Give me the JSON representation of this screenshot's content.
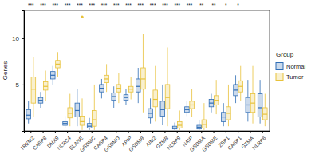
{
  "chart_data": {
    "type": "box",
    "y_label": "Genes",
    "legend_title": "Group",
    "legend": "right",
    "categories": [
      "TREM2",
      "CASP8",
      "DHX9",
      "NLRC4",
      "ELANE",
      "GSDMC",
      "CASP4",
      "GSDMD",
      "APIP",
      "GSDMB",
      "AIM2",
      "GZMB",
      "NLRP9",
      "NAIP",
      "GSDMA",
      "GSDME",
      "ZBP1",
      "CASP1",
      "GZMA",
      "NLRP6"
    ],
    "significance": [
      "***",
      "***",
      "***",
      "***",
      "***",
      "***",
      "***",
      "***",
      "***",
      "***",
      "***",
      "***",
      "***",
      "***",
      "**",
      "**",
      "*",
      "*",
      "-",
      "-"
    ],
    "ylim": [
      0,
      13
    ],
    "yticks": [
      5,
      10
    ],
    "series": [
      {
        "name": "Normal",
        "color": "#2f6db5",
        "boxes": [
          [
            0.8,
            1.3,
            1.7,
            2.3,
            3.2
          ],
          [
            2.5,
            3.0,
            3.3,
            3.6,
            4.2
          ],
          [
            5.0,
            5.6,
            6.0,
            6.4,
            7.0
          ],
          [
            0.3,
            0.6,
            0.8,
            1.0,
            1.6
          ],
          [
            0.5,
            1.5,
            2.2,
            3.0,
            4.5
          ],
          [
            0.1,
            0.3,
            0.5,
            0.8,
            1.4
          ],
          [
            3.5,
            4.2,
            4.6,
            5.0,
            5.6
          ],
          [
            2.5,
            3.3,
            3.7,
            4.1,
            4.8
          ],
          [
            2.8,
            3.3,
            3.6,
            3.9,
            4.5
          ],
          [
            3.0,
            4.2,
            4.8,
            5.6,
            6.8
          ],
          [
            0.8,
            1.4,
            1.9,
            2.4,
            3.5
          ],
          [
            0.6,
            1.6,
            2.3,
            3.2,
            5.0
          ],
          [
            0.1,
            0.2,
            0.3,
            0.5,
            0.9
          ],
          [
            1.6,
            2.0,
            2.3,
            2.6,
            3.2
          ],
          [
            0.1,
            0.2,
            0.4,
            0.6,
            1.2
          ],
          [
            2.0,
            2.6,
            3.0,
            3.4,
            4.0
          ],
          [
            0.5,
            1.0,
            1.5,
            2.0,
            3.0
          ],
          [
            3.0,
            3.8,
            4.4,
            5.0,
            6.0
          ],
          [
            1.0,
            2.0,
            2.8,
            3.6,
            5.5
          ],
          [
            0.8,
            1.5,
            2.5,
            4.0,
            5.5
          ]
        ],
        "outliers": [
          [],
          [],
          [],
          [],
          [],
          [],
          [],
          [],
          [],
          [],
          [],
          [],
          [],
          [],
          [],
          [],
          [],
          [],
          [],
          []
        ]
      },
      {
        "name": "Tumor",
        "color": "#e8c23a",
        "boxes": [
          [
            1.5,
            3.0,
            4.5,
            5.8,
            8.0
          ],
          [
            3.2,
            4.4,
            4.8,
            5.3,
            6.5
          ],
          [
            5.8,
            6.8,
            7.2,
            7.6,
            8.5
          ],
          [
            0.5,
            1.4,
            1.9,
            2.5,
            4.0
          ],
          [
            0.1,
            0.6,
            1.0,
            1.6,
            3.5
          ],
          [
            0.1,
            0.5,
            1.2,
            2.2,
            5.0
          ],
          [
            4.2,
            5.2,
            5.6,
            6.0,
            7.2
          ],
          [
            3.0,
            4.2,
            4.6,
            5.0,
            6.2
          ],
          [
            3.4,
            4.2,
            4.5,
            4.8,
            5.8
          ],
          [
            2.0,
            4.5,
            5.6,
            6.8,
            10.5
          ],
          [
            1.0,
            2.6,
            3.4,
            4.4,
            7.0
          ],
          [
            0.5,
            2.4,
            3.6,
            5.0,
            9.0
          ],
          [
            0.1,
            0.3,
            0.6,
            1.0,
            2.2
          ],
          [
            1.5,
            2.4,
            2.8,
            3.2,
            4.5
          ],
          [
            0.1,
            0.3,
            0.7,
            1.2,
            3.0
          ],
          [
            1.8,
            2.8,
            3.3,
            3.8,
            5.5
          ],
          [
            0.5,
            1.2,
            1.9,
            2.6,
            5.0
          ],
          [
            3.2,
            4.2,
            4.8,
            5.4,
            7.0
          ],
          [
            0.8,
            2.0,
            3.0,
            4.0,
            7.0
          ],
          [
            0.5,
            1.2,
            1.8,
            2.5,
            4.0
          ]
        ],
        "outliers": [
          [],
          [],
          [],
          [],
          [
            12.3
          ],
          [],
          [],
          [],
          [],
          [],
          [],
          [],
          [],
          [],
          [],
          [],
          [],
          [],
          [],
          []
        ]
      }
    ]
  }
}
